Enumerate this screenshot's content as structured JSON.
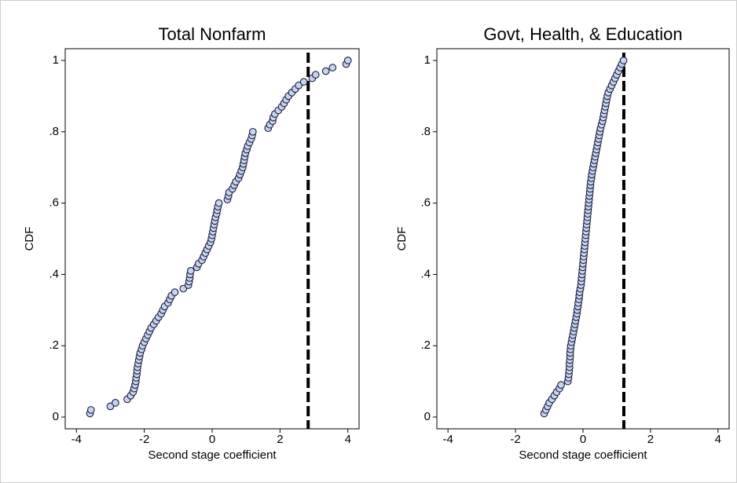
{
  "chart_data": [
    {
      "type": "scatter",
      "title": "Total Nonfarm",
      "x_label": "Second stage coefficient",
      "y_label": "CDF",
      "xlim": [
        -4.33,
        4.33
      ],
      "ylim": [
        -0.033,
        1.033
      ],
      "xticks": [
        -4,
        -2,
        0,
        2,
        4
      ],
      "yticks": [
        0,
        {
          "value": 0.2,
          "label": ".2"
        },
        {
          "value": 0.4,
          "label": ".4"
        },
        {
          "value": 0.6,
          "label": ".6"
        },
        {
          "value": 0.8,
          "label": ".8"
        },
        1
      ],
      "vline": 2.83,
      "point_color": "#c6d4ec",
      "x": [
        -3.6,
        -3.57,
        -3.0,
        -2.85,
        -2.5,
        -2.4,
        -2.33,
        -2.3,
        -2.27,
        -2.25,
        -2.24,
        -2.22,
        -2.21,
        -2.2,
        -2.18,
        -2.16,
        -2.14,
        -2.12,
        -2.08,
        -2.05,
        -2.0,
        -1.95,
        -1.9,
        -1.85,
        -1.8,
        -1.72,
        -1.65,
        -1.58,
        -1.5,
        -1.45,
        -1.4,
        -1.3,
        -1.25,
        -1.2,
        -1.1,
        -0.85,
        -0.7,
        -0.68,
        -0.66,
        -0.65,
        -0.63,
        -0.45,
        -0.4,
        -0.3,
        -0.25,
        -0.2,
        -0.15,
        -0.1,
        -0.05,
        -0.02,
        0.0,
        0.02,
        0.04,
        0.06,
        0.08,
        0.1,
        0.13,
        0.15,
        0.17,
        0.2,
        0.45,
        0.48,
        0.5,
        0.6,
        0.65,
        0.7,
        0.78,
        0.82,
        0.86,
        0.9,
        0.92,
        0.94,
        0.96,
        0.98,
        1.02,
        1.05,
        1.1,
        1.15,
        1.18,
        1.2,
        1.65,
        1.7,
        1.78,
        1.8,
        1.85,
        1.95,
        2.05,
        2.12,
        2.18,
        2.25,
        2.35,
        2.45,
        2.55,
        2.7,
        2.95,
        3.05,
        3.35,
        3.55,
        3.95,
        4.0
      ],
      "values": [
        0.01,
        0.02,
        0.03,
        0.04,
        0.05,
        0.06,
        0.07,
        0.08,
        0.09,
        0.1,
        0.11,
        0.12,
        0.13,
        0.14,
        0.15,
        0.16,
        0.17,
        0.18,
        0.19,
        0.2,
        0.21,
        0.22,
        0.23,
        0.24,
        0.25,
        0.26,
        0.27,
        0.28,
        0.29,
        0.3,
        0.31,
        0.32,
        0.33,
        0.34,
        0.35,
        0.36,
        0.37,
        0.38,
        0.39,
        0.4,
        0.41,
        0.42,
        0.43,
        0.44,
        0.45,
        0.46,
        0.47,
        0.48,
        0.49,
        0.5,
        0.51,
        0.52,
        0.53,
        0.54,
        0.55,
        0.56,
        0.57,
        0.58,
        0.59,
        0.6,
        0.61,
        0.62,
        0.63,
        0.64,
        0.65,
        0.66,
        0.67,
        0.68,
        0.69,
        0.7,
        0.71,
        0.72,
        0.73,
        0.74,
        0.75,
        0.76,
        0.77,
        0.78,
        0.79,
        0.8,
        0.81,
        0.82,
        0.83,
        0.84,
        0.85,
        0.86,
        0.87,
        0.88,
        0.89,
        0.9,
        0.91,
        0.92,
        0.93,
        0.94,
        0.95,
        0.96,
        0.97,
        0.98,
        0.99,
        1.0
      ]
    },
    {
      "type": "scatter",
      "title": "Govt, Health, & Education",
      "x_label": "Second stage coefficient",
      "y_label": "CDF",
      "xlim": [
        -4.33,
        4.33
      ],
      "ylim": [
        -0.033,
        1.033
      ],
      "xticks": [
        -4,
        -2,
        0,
        2,
        4
      ],
      "yticks": [
        0,
        {
          "value": 0.2,
          "label": ".2"
        },
        {
          "value": 0.4,
          "label": ".4"
        },
        {
          "value": 0.6,
          "label": ".6"
        },
        {
          "value": 0.8,
          "label": ".8"
        },
        1
      ],
      "vline": 1.21,
      "point_color": "#c6d4ec",
      "x": [
        -1.15,
        -1.1,
        -1.05,
        -1.0,
        -0.92,
        -0.85,
        -0.78,
        -0.7,
        -0.65,
        -0.45,
        -0.43,
        -0.42,
        -0.41,
        -0.4,
        -0.4,
        -0.39,
        -0.38,
        -0.38,
        -0.37,
        -0.36,
        -0.34,
        -0.32,
        -0.3,
        -0.28,
        -0.26,
        -0.24,
        -0.22,
        -0.2,
        -0.18,
        -0.17,
        -0.15,
        -0.14,
        -0.12,
        -0.11,
        -0.1,
        -0.08,
        -0.06,
        -0.05,
        -0.04,
        -0.03,
        -0.02,
        -0.01,
        0.0,
        0.01,
        0.02,
        0.03,
        0.04,
        0.05,
        0.06,
        0.07,
        0.08,
        0.09,
        0.1,
        0.11,
        0.12,
        0.13,
        0.14,
        0.15,
        0.16,
        0.17,
        0.18,
        0.19,
        0.2,
        0.21,
        0.22,
        0.23,
        0.25,
        0.26,
        0.28,
        0.3,
        0.32,
        0.34,
        0.36,
        0.38,
        0.4,
        0.42,
        0.44,
        0.46,
        0.48,
        0.5,
        0.52,
        0.55,
        0.58,
        0.6,
        0.62,
        0.64,
        0.66,
        0.68,
        0.7,
        0.72,
        0.75,
        0.8,
        0.85,
        0.9,
        0.95,
        1.0,
        1.05,
        1.1,
        1.15,
        1.2
      ],
      "values": [
        0.01,
        0.02,
        0.03,
        0.04,
        0.05,
        0.06,
        0.07,
        0.08,
        0.09,
        0.1,
        0.11,
        0.12,
        0.13,
        0.14,
        0.15,
        0.16,
        0.17,
        0.18,
        0.19,
        0.2,
        0.21,
        0.22,
        0.23,
        0.24,
        0.25,
        0.26,
        0.27,
        0.28,
        0.29,
        0.3,
        0.31,
        0.32,
        0.33,
        0.34,
        0.35,
        0.36,
        0.37,
        0.38,
        0.39,
        0.4,
        0.41,
        0.42,
        0.43,
        0.44,
        0.45,
        0.46,
        0.47,
        0.48,
        0.49,
        0.5,
        0.51,
        0.52,
        0.53,
        0.54,
        0.55,
        0.56,
        0.57,
        0.58,
        0.59,
        0.6,
        0.61,
        0.62,
        0.63,
        0.64,
        0.65,
        0.66,
        0.67,
        0.68,
        0.69,
        0.7,
        0.71,
        0.72,
        0.73,
        0.74,
        0.75,
        0.76,
        0.77,
        0.78,
        0.79,
        0.8,
        0.81,
        0.82,
        0.83,
        0.84,
        0.85,
        0.86,
        0.87,
        0.88,
        0.89,
        0.9,
        0.91,
        0.92,
        0.93,
        0.94,
        0.95,
        0.96,
        0.97,
        0.98,
        0.99,
        1.0
      ]
    }
  ]
}
